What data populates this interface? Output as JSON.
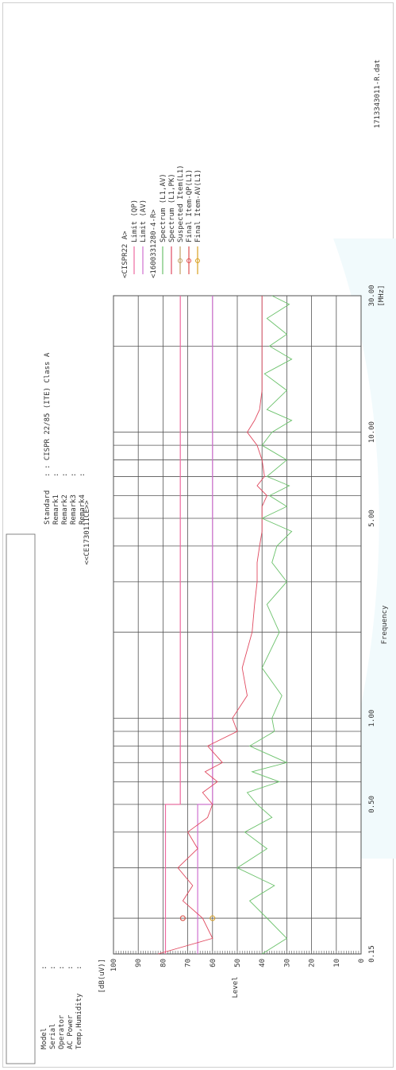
{
  "report": {
    "file_name": "1713343011-R.dat",
    "document_id": "<<CE1730111CE>>",
    "info_labels": [
      "Model",
      "Serial",
      "Operator",
      "AC Power",
      "Temp,Humidity"
    ],
    "info_colon": ":",
    "remark_labels": [
      "Standard",
      "Remark1",
      "Remark2",
      "Remark3",
      "Remark4"
    ],
    "standard_value": ": CISPR 22/85 (ITE) Class A"
  },
  "legend": {
    "group_title": "<CISPR22 A>",
    "group_items": [
      "Limit (QP)",
      "Limit (AV)"
    ],
    "measure_title": "<1600331280-4-R>",
    "measure_items": [
      "Spectrum (L1,AV)",
      "Spectrum (L1,PK)",
      "Suspected Item(L1)",
      "Final Item-QP(L1)",
      "Final Item-AV(L1)"
    ],
    "colors": {
      "limit_qp": "#ee6aa0",
      "limit_av": "#d070d0",
      "spectrum_av": "#6cc26c",
      "spectrum_pk": "#e04a60",
      "suspected": "#c0a060",
      "final_qp": "#e05050",
      "final_av": "#d9a020"
    }
  },
  "chart_data": {
    "type": "line",
    "title": "",
    "xlabel": "Frequency",
    "x_unit": "[MHz]",
    "ylabel": "Level",
    "y_unit": "[dB(uV)]",
    "x_scale": "log",
    "xlim": [
      0.15,
      30.0
    ],
    "ylim": [
      0,
      100
    ],
    "x_ticks": [
      0.15,
      0.5,
      1.0,
      5.0,
      10.0,
      30.0
    ],
    "x_tick_labels": [
      "0.15",
      "0.50",
      "1.00",
      "5.00",
      "10.00",
      "30.00"
    ],
    "y_ticks": [
      0,
      10,
      20,
      30,
      40,
      50,
      60,
      70,
      80,
      90,
      100
    ],
    "y_tick_labels": [
      "0",
      "10",
      "20",
      "30",
      "40",
      "50",
      "60",
      "70",
      "80",
      "90",
      "100"
    ],
    "grid": true,
    "legend_position": "top-right",
    "series": [
      {
        "name": "Limit (QP)",
        "color": "#ee6aa0",
        "x": [
          0.15,
          0.5,
          0.5,
          30.0
        ],
        "y": [
          79,
          79,
          73,
          73
        ]
      },
      {
        "name": "Limit (AV)",
        "color": "#d070d0",
        "x": [
          0.15,
          0.5,
          0.5,
          30.0
        ],
        "y": [
          66,
          66,
          60,
          60
        ]
      },
      {
        "name": "Spectrum (L1,PK)",
        "color": "#e04a60",
        "x": [
          0.15,
          0.17,
          0.2,
          0.23,
          0.26,
          0.3,
          0.35,
          0.4,
          0.45,
          0.5,
          0.55,
          0.6,
          0.65,
          0.7,
          0.8,
          0.9,
          1.0,
          1.2,
          1.5,
          2.0,
          2.5,
          3.0,
          3.5,
          4.0,
          4.5,
          5.0,
          5.5,
          6.0,
          6.5,
          7.0,
          8.0,
          9.0,
          10.0,
          11.0,
          12.0,
          14.0,
          16.0,
          18.0,
          20.0,
          22.0,
          25.0,
          28.0,
          30.0
        ],
        "y": [
          82,
          60,
          64,
          72,
          68,
          74,
          66,
          70,
          62,
          60,
          64,
          58,
          63,
          56,
          62,
          50,
          52,
          46,
          48,
          44,
          43,
          42,
          42,
          41,
          40,
          40,
          40,
          38,
          42,
          39,
          40,
          42,
          46,
          43,
          41,
          40,
          40,
          40,
          40,
          40,
          40,
          40,
          40
        ]
      },
      {
        "name": "Spectrum (L1,AV)",
        "color": "#6cc26c",
        "x": [
          0.15,
          0.17,
          0.2,
          0.23,
          0.26,
          0.3,
          0.35,
          0.4,
          0.45,
          0.5,
          0.55,
          0.6,
          0.65,
          0.7,
          0.8,
          0.9,
          1.0,
          1.2,
          1.5,
          2.0,
          2.5,
          3.0,
          3.5,
          4.0,
          4.5,
          5.0,
          5.5,
          6.0,
          6.5,
          7.0,
          8.0,
          9.0,
          10.0,
          11.0,
          12.0,
          14.0,
          16.0,
          18.0,
          20.0,
          22.0,
          25.0,
          28.0,
          30.0
        ],
        "y": [
          40,
          30,
          38,
          45,
          35,
          50,
          38,
          47,
          36,
          42,
          46,
          33,
          44,
          30,
          45,
          35,
          36,
          32,
          40,
          33,
          38,
          30,
          36,
          34,
          28,
          40,
          30,
          37,
          29,
          38,
          30,
          40,
          36,
          28,
          38,
          30,
          39,
          28,
          37,
          30,
          38,
          29,
          36
        ]
      }
    ],
    "markers": [
      {
        "name": "Suspected Item(L1)",
        "x": 0.2,
        "y": 72
      },
      {
        "name": "Final Item-QP(L1)",
        "x": 0.2,
        "y": 72
      },
      {
        "name": "Final Item-AV(L1)",
        "x": 0.2,
        "y": 60
      }
    ]
  }
}
